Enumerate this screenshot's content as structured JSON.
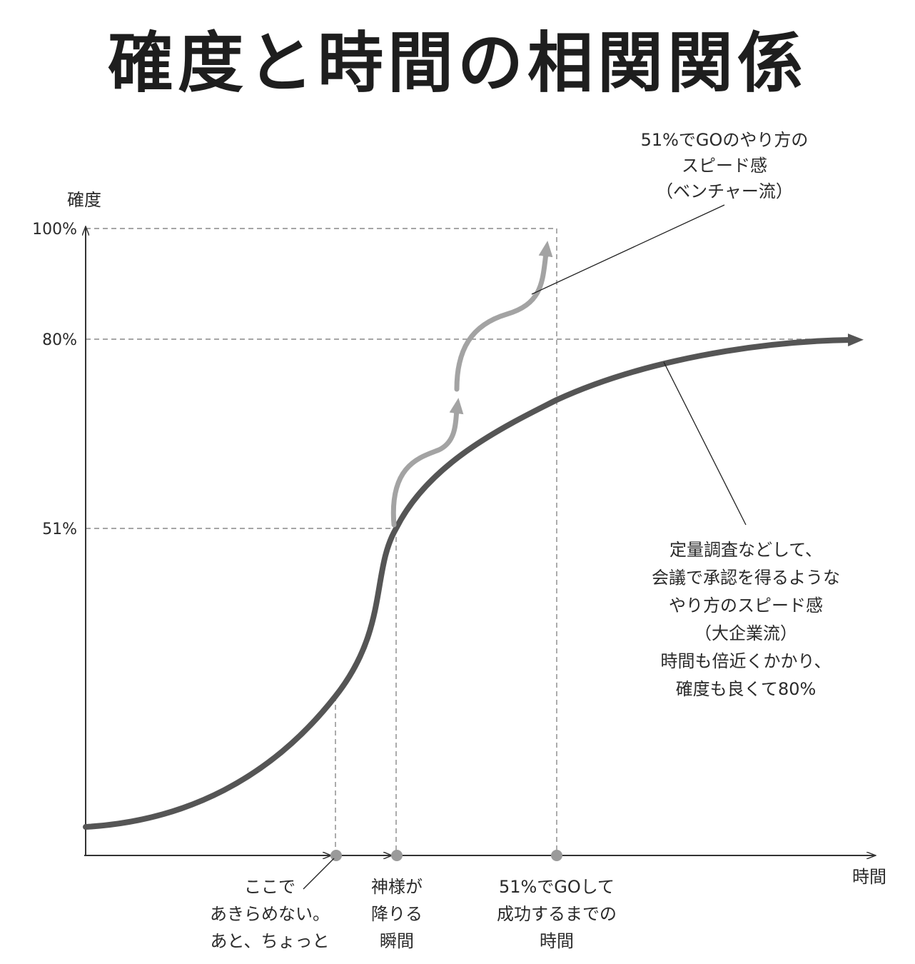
{
  "title": "確度と時間の相関関係",
  "axes": {
    "y_label": "確度",
    "x_label": "時間",
    "y_ticks": [
      "100%",
      "80%",
      "51%"
    ]
  },
  "annotations": {
    "venture": [
      "51%でGOのやり方の",
      "スピード感",
      "（ベンチャー流）"
    ],
    "enterprise": [
      "定量調査などして、",
      "会議で承認を得るような",
      "やり方のスピード感",
      "（大企業流）",
      "時間も倍近くかかり、",
      "確度も良くて80%"
    ],
    "give_up": [
      "ここで",
      "あきらめない。",
      "あと、ちょっと"
    ],
    "god_moment": [
      "神様が",
      "降りる",
      "瞬間"
    ],
    "success_time": [
      "51%でGOして",
      "成功するまでの",
      "時間"
    ]
  },
  "colors": {
    "enterprise_curve": "#555555",
    "venture_curve": "#a3a3a3",
    "axis": "#333333",
    "guide": "#888888"
  }
}
